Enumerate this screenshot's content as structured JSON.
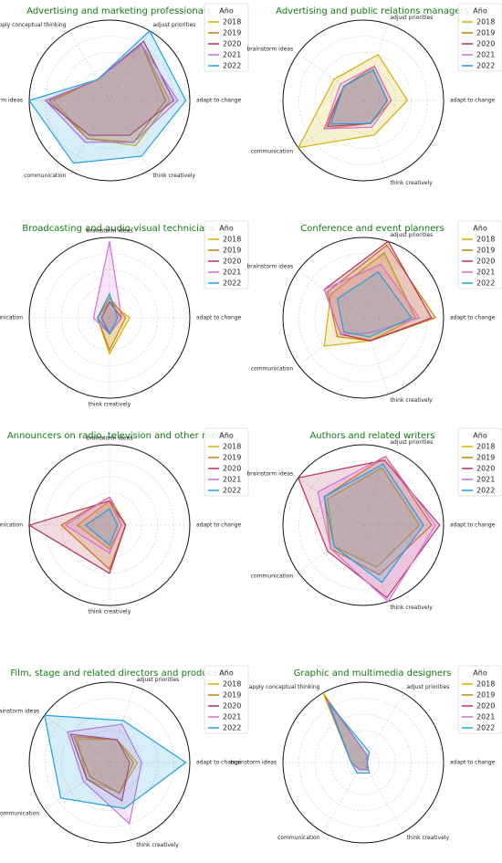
{
  "chart_data": [
    {
      "type": "radar",
      "title": "Advertising and marketing professionals",
      "legend_title": "Año",
      "rlim": [
        0,
        1
      ],
      "axes": [
        "adapt to change",
        "adjust priorities",
        "apply conceptual thinking",
        "brainstorm ideas",
        "communication",
        "think creatively"
      ],
      "series": [
        {
          "name": "2018",
          "color": "#d4b000",
          "values": [
            0.75,
            0.8,
            0.3,
            0.7,
            0.55,
            0.65
          ]
        },
        {
          "name": "2019",
          "color": "#c8800a",
          "values": [
            0.7,
            0.8,
            0.3,
            0.75,
            0.55,
            0.6
          ]
        },
        {
          "name": "2020",
          "color": "#b8305a",
          "values": [
            0.8,
            0.85,
            0.3,
            0.8,
            0.5,
            0.5
          ]
        },
        {
          "name": "2021",
          "color": "#d070d8",
          "values": [
            0.85,
            0.8,
            0.3,
            0.8,
            0.6,
            0.6
          ]
        },
        {
          "name": "2022",
          "color": "#22a0e0",
          "values": [
            0.95,
            1.0,
            0.3,
            1.0,
            0.9,
            0.8
          ]
        }
      ]
    },
    {
      "type": "radar",
      "title": "Advertising and public relations managers",
      "legend_title": "Año",
      "rlim": [
        0,
        1
      ],
      "axes": [
        "adapt to change",
        "adjust priorities",
        "brainstorm ideas",
        "communication",
        "think creatively"
      ],
      "series": [
        {
          "name": "2018",
          "color": "#d4b000",
          "values": [
            0.55,
            0.6,
            0.45,
            1.0,
            0.45
          ]
        },
        {
          "name": "2019",
          "color": "#c8800a",
          "values": [
            0.35,
            0.45,
            0.3,
            0.6,
            0.3
          ]
        },
        {
          "name": "2020",
          "color": "#b8305a",
          "values": [
            0.3,
            0.4,
            0.3,
            0.55,
            0.3
          ]
        },
        {
          "name": "2021",
          "color": "#d070d8",
          "values": [
            0.35,
            0.45,
            0.35,
            0.6,
            0.35
          ]
        },
        {
          "name": "2022",
          "color": "#22a0e0",
          "values": [
            0.3,
            0.4,
            0.3,
            0.5,
            0.3
          ]
        }
      ]
    },
    {
      "type": "radar",
      "title": "Broadcasting and audio-visual technicians",
      "legend_title": "Año",
      "rlim": [
        0,
        1
      ],
      "axes": [
        "adapt to change",
        "brainstorm ideas",
        "communication",
        "think creatively"
      ],
      "series": [
        {
          "name": "2018",
          "color": "#d4b000",
          "values": [
            0.25,
            0.2,
            0.15,
            0.45
          ]
        },
        {
          "name": "2019",
          "color": "#c8800a",
          "values": [
            0.2,
            0.25,
            0.15,
            0.4
          ]
        },
        {
          "name": "2020",
          "color": "#b8305a",
          "values": [
            0.15,
            0.2,
            0.1,
            0.2
          ]
        },
        {
          "name": "2021",
          "color": "#d070d8",
          "values": [
            0.15,
            0.95,
            0.2,
            0.2
          ]
        },
        {
          "name": "2022",
          "color": "#22a0e0",
          "values": [
            0.1,
            0.3,
            0.15,
            0.2
          ]
        }
      ]
    },
    {
      "type": "radar",
      "title": "Conference and event planners",
      "legend_title": "Año",
      "rlim": [
        0,
        1
      ],
      "axes": [
        "adapt to change",
        "adjust priorities",
        "brainstorm ideas",
        "communication",
        "think creatively"
      ],
      "series": [
        {
          "name": "2018",
          "color": "#d4b000",
          "values": [
            0.65,
            0.85,
            0.5,
            0.6,
            0.3
          ]
        },
        {
          "name": "2019",
          "color": "#c8800a",
          "values": [
            0.9,
            0.95,
            0.55,
            0.4,
            0.3
          ]
        },
        {
          "name": "2020",
          "color": "#b8305a",
          "values": [
            0.85,
            1.0,
            0.6,
            0.35,
            0.3
          ]
        },
        {
          "name": "2021",
          "color": "#d070d8",
          "values": [
            0.7,
            0.7,
            0.6,
            0.35,
            0.2
          ]
        },
        {
          "name": "2022",
          "color": "#22a0e0",
          "values": [
            0.6,
            0.6,
            0.4,
            0.3,
            0.25
          ]
        }
      ]
    },
    {
      "type": "radar",
      "title": "Announcers on radio, television and other media",
      "legend_title": "Año",
      "rlim": [
        0,
        1
      ],
      "axes": [
        "adapt to change",
        "brainstorm ideas",
        "communication",
        "think creatively"
      ],
      "series": [
        {
          "name": "2018",
          "color": "#d4b000",
          "values": [
            0.15,
            0.3,
            0.4,
            0.3
          ]
        },
        {
          "name": "2019",
          "color": "#c8800a",
          "values": [
            0.2,
            0.35,
            0.6,
            0.55
          ]
        },
        {
          "name": "2020",
          "color": "#b8305a",
          "values": [
            0.2,
            0.3,
            1.0,
            0.6
          ]
        },
        {
          "name": "2021",
          "color": "#d070d8",
          "values": [
            0.15,
            0.35,
            0.55,
            0.35
          ]
        },
        {
          "name": "2022",
          "color": "#22a0e0",
          "values": [
            0.1,
            0.2,
            0.3,
            0.25
          ]
        }
      ]
    },
    {
      "type": "radar",
      "title": "Authors and related writers",
      "legend_title": "Año",
      "rlim": [
        0,
        1
      ],
      "axes": [
        "adapt to change",
        "adjust priorities",
        "brainstorm ideas",
        "communication",
        "think creatively"
      ],
      "series": [
        {
          "name": "2018",
          "color": "#d4b000",
          "values": [
            0.7,
            0.75,
            0.55,
            0.45,
            0.55
          ]
        },
        {
          "name": "2019",
          "color": "#c8800a",
          "values": [
            0.85,
            0.9,
            0.6,
            0.5,
            0.65
          ]
        },
        {
          "name": "2020",
          "color": "#b8305a",
          "values": [
            0.95,
            0.85,
            1.0,
            0.55,
            0.95
          ]
        },
        {
          "name": "2021",
          "color": "#d070d8",
          "values": [
            0.9,
            0.9,
            0.7,
            0.5,
            1.0
          ]
        },
        {
          "name": "2022",
          "color": "#22a0e0",
          "values": [
            0.75,
            0.8,
            0.6,
            0.45,
            0.75
          ]
        }
      ]
    },
    {
      "type": "radar",
      "title": "Film, stage and related directors and producers",
      "legend_title": "Año",
      "rlim": [
        0,
        1
      ],
      "axes": [
        "adapt to change",
        "adjust priorities",
        "brainstorm ideas",
        "communication",
        "think creatively"
      ],
      "series": [
        {
          "name": "2018",
          "color": "#d4b000",
          "values": [
            0.35,
            0.3,
            0.5,
            0.35,
            0.4
          ]
        },
        {
          "name": "2019",
          "color": "#c8800a",
          "values": [
            0.3,
            0.3,
            0.55,
            0.3,
            0.4
          ]
        },
        {
          "name": "2020",
          "color": "#b8305a",
          "values": [
            0.25,
            0.3,
            0.6,
            0.35,
            0.5
          ]
        },
        {
          "name": "2021",
          "color": "#d070d8",
          "values": [
            0.4,
            0.5,
            0.65,
            0.4,
            0.8
          ]
        },
        {
          "name": "2022",
          "color": "#22a0e0",
          "values": [
            0.95,
            0.55,
            1.0,
            0.75,
            0.6
          ]
        }
      ]
    },
    {
      "type": "radar",
      "title": "Graphic and multimedia designers",
      "legend_title": "Año",
      "rlim": [
        0,
        1
      ],
      "axes": [
        "adapt to change",
        "adjust priorities",
        "apply conceptual thinking",
        "brainstorm ideas",
        "communication",
        "think creatively"
      ],
      "series": [
        {
          "name": "2018",
          "color": "#d4b000",
          "values": [
            0.05,
            0.1,
            1.0,
            0.15,
            0.1,
            0.1
          ]
        },
        {
          "name": "2019",
          "color": "#c8800a",
          "values": [
            0.05,
            0.1,
            0.95,
            0.15,
            0.1,
            0.1
          ]
        },
        {
          "name": "2020",
          "color": "#b8305a",
          "values": [
            0.05,
            0.1,
            0.9,
            0.15,
            0.1,
            0.1
          ]
        },
        {
          "name": "2021",
          "color": "#d070d8",
          "values": [
            0.05,
            0.1,
            0.9,
            0.15,
            0.1,
            0.1
          ]
        },
        {
          "name": "2022",
          "color": "#22a0e0",
          "values": [
            0.05,
            0.15,
            0.85,
            0.15,
            0.15,
            0.15
          ]
        }
      ]
    }
  ]
}
